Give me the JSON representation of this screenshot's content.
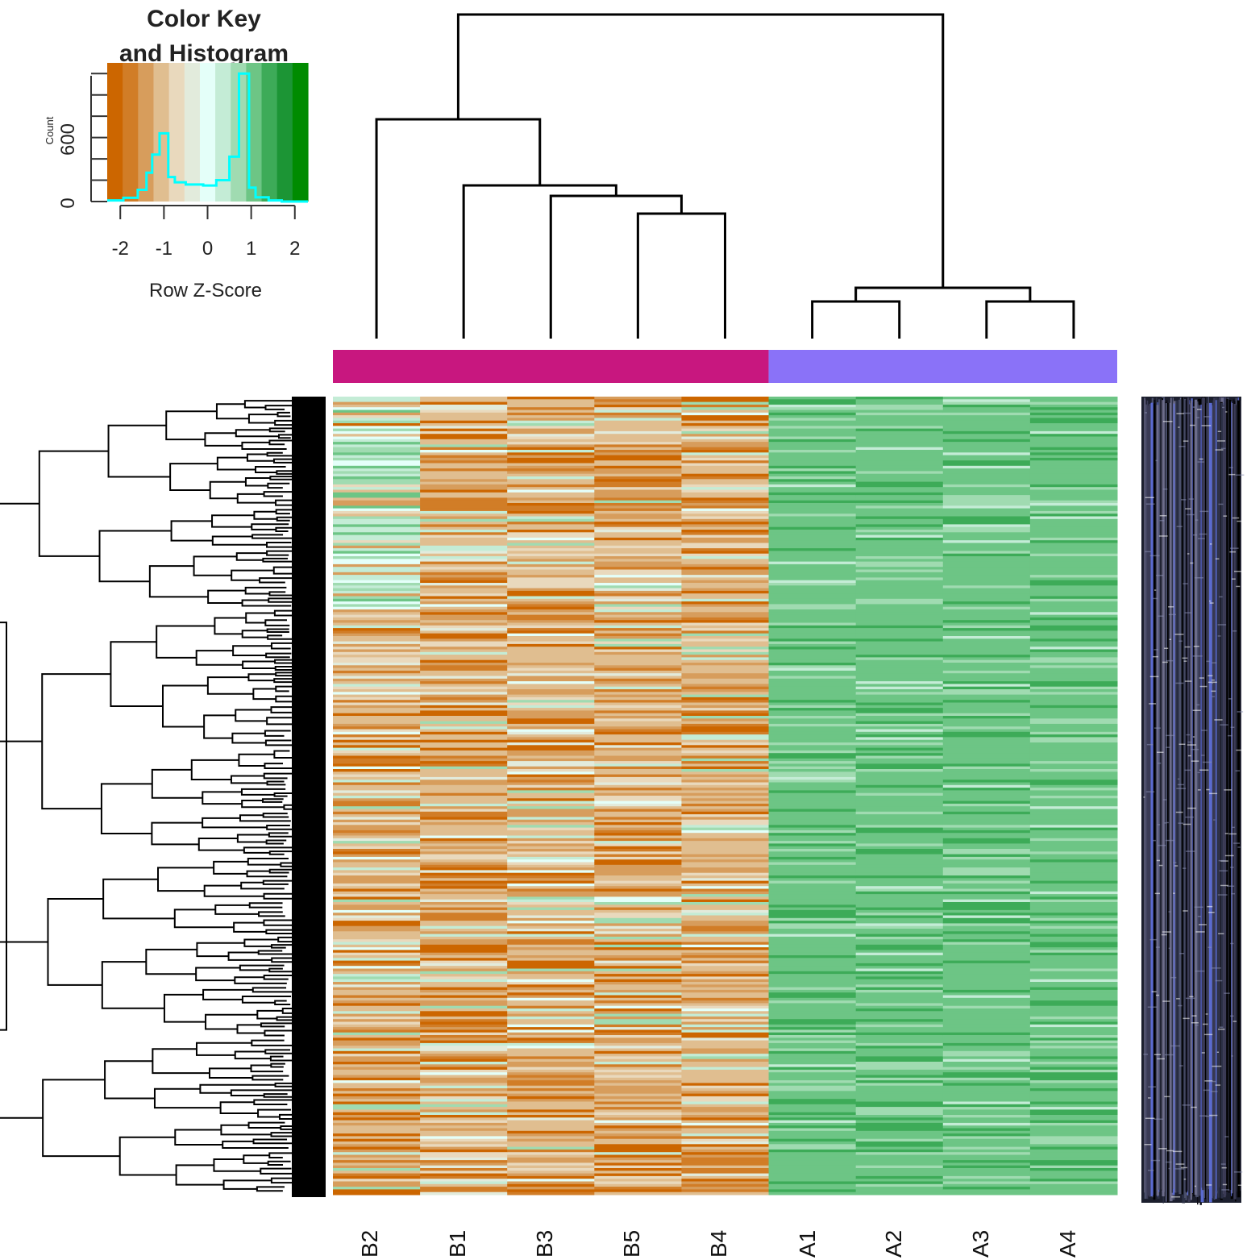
{
  "chart_data": {
    "type": "heatmap",
    "title": "",
    "columns": [
      "B2",
      "B1",
      "B3",
      "B5",
      "B4",
      "A1",
      "A2",
      "A3",
      "A4"
    ],
    "column_groups": [
      {
        "name": "B",
        "members": [
          "B2",
          "B1",
          "B3",
          "B5",
          "B4"
        ],
        "color": "#c8177f"
      },
      {
        "name": "A",
        "members": [
          "A1",
          "A2",
          "A3",
          "A4"
        ],
        "color": "#8a72f8"
      }
    ],
    "row_count": 300,
    "value_scale": "Row Z-Score",
    "color_palette": [
      "#cc6600",
      "#d17d27",
      "#d79d5c",
      "#e0be90",
      "#e9d9bd",
      "#e2ebdc",
      "#e4fff9",
      "#c4ecd6",
      "#a0dbb1",
      "#6dc585",
      "#3dab58",
      "#1c9535",
      "#008b00"
    ],
    "column_profiles": {
      "B2": "mixed, mostly tan/orange with green bands in upper third",
      "B1": "orange/tan",
      "B3": "orange/tan with pale bands",
      "B5": "orange/tan",
      "B4": "orange/tan with pale bands",
      "A1": "green",
      "A2": "green",
      "A3": "green",
      "A4": "green"
    },
    "color_key": {
      "title_lines": [
        "Color Key",
        "and Histogram"
      ],
      "xlabel": "Row Z-Score",
      "ylabel": "Count",
      "x_ticks": [
        "-2",
        "-1",
        "0",
        "1",
        "2"
      ],
      "y_ticks": [
        "0",
        "600"
      ],
      "xlim": [
        -2.3,
        2.3
      ],
      "histogram": {
        "bin_edges": [
          -2.3,
          -1.93,
          -1.6,
          -1.4,
          -1.27,
          -1.1,
          -0.9,
          -0.75,
          -0.5,
          -0.1,
          0.2,
          0.5,
          0.72,
          0.95,
          1.1,
          1.4,
          1.7,
          2.3
        ],
        "counts": [
          10,
          35,
          110,
          270,
          440,
          640,
          230,
          180,
          160,
          150,
          200,
          420,
          1200,
          130,
          40,
          10,
          0
        ]
      }
    },
    "column_dendrogram": [
      {
        "group": "B",
        "children": [
          "B2",
          {
            "children": [
              "B1",
              {
                "children": [
                  "B3",
                  {
                    "children": [
                      "B5",
                      "B4"
                    ]
                  }
                ]
              }
            ]
          }
        ]
      },
      {
        "group": "A",
        "children": [
          {
            "children": [
              "A1",
              "A2"
            ]
          },
          {
            "children": [
              "A3",
              "A4"
            ]
          }
        ]
      }
    ]
  },
  "colors": {
    "b_group_bar": "#c8177f",
    "a_group_bar": "#8a72f8",
    "histogram_line": "#00ffff",
    "dendrogram": "#000000"
  }
}
